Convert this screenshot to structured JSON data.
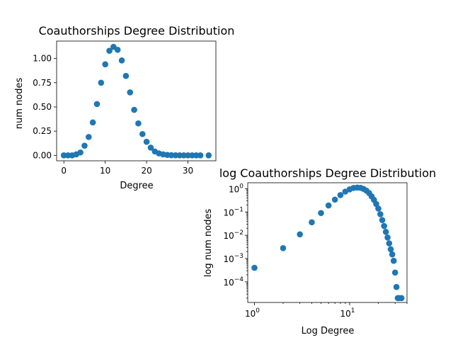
{
  "chart_data": [
    {
      "type": "scatter",
      "title": "Coauthorships Degree Distribution",
      "xlabel": "Degree",
      "ylabel": "num nodes",
      "xlim": [
        -1.75,
        36.75
      ],
      "ylim": [
        -0.056,
        1.18
      ],
      "xticks": [
        0,
        10,
        20,
        30
      ],
      "yticks": [
        0.0,
        0.25,
        0.5,
        0.75,
        1.0
      ],
      "ytick_labels": [
        "0.00",
        "0.25",
        "0.50",
        "0.75",
        "1.00"
      ],
      "color": "#1f77b4",
      "x": [
        0,
        1,
        2,
        3,
        4,
        5,
        6,
        7,
        8,
        9,
        10,
        11,
        12,
        13,
        14,
        15,
        16,
        17,
        18,
        19,
        20,
        21,
        22,
        23,
        24,
        25,
        26,
        27,
        28,
        29,
        30,
        31,
        32,
        33,
        35
      ],
      "y": [
        0.0,
        0.0,
        0.0,
        0.01,
        0.03,
        0.1,
        0.19,
        0.34,
        0.53,
        0.75,
        0.94,
        1.08,
        1.12,
        1.09,
        0.98,
        0.82,
        0.65,
        0.47,
        0.33,
        0.22,
        0.14,
        0.08,
        0.04,
        0.02,
        0.01,
        0.005,
        0.002,
        0.001,
        0.0,
        0.0,
        0.0,
        0.0,
        0.0,
        0.0,
        0.0
      ]
    },
    {
      "type": "scatter",
      "title": "log Coauthorships Degree Distribution",
      "xlabel": "Log Degree",
      "ylabel": "log num nodes",
      "xscale": "log",
      "yscale": "log",
      "xlim": [
        0.85,
        40
      ],
      "ylim": [
        1.3e-05,
        1.8
      ],
      "xticks": [
        1,
        10
      ],
      "xtick_labels": [
        [
          "10",
          "0"
        ],
        [
          "10",
          "1"
        ]
      ],
      "yticks": [
        0.0001,
        0.001,
        0.01,
        0.1,
        1
      ],
      "ytick_labels": [
        [
          "10",
          "−4"
        ],
        [
          "10",
          "−3"
        ],
        [
          "10",
          "−2"
        ],
        [
          "10",
          "−1"
        ],
        [
          "10",
          "0"
        ]
      ],
      "color": "#1f77b4",
      "x": [
        1,
        2,
        3,
        4,
        5,
        6,
        7,
        8,
        9,
        10,
        11,
        12,
        13,
        14,
        15,
        16,
        17,
        18,
        19,
        20,
        21,
        22,
        23,
        24,
        25,
        26,
        27,
        28,
        29,
        30,
        31,
        32,
        33,
        35
      ],
      "y": [
        0.0004,
        0.0028,
        0.011,
        0.036,
        0.09,
        0.19,
        0.34,
        0.53,
        0.75,
        0.94,
        1.08,
        1.12,
        1.09,
        0.98,
        0.82,
        0.65,
        0.47,
        0.33,
        0.22,
        0.14,
        0.08,
        0.045,
        0.025,
        0.014,
        0.008,
        0.0045,
        0.0025,
        0.0015,
        0.0008,
        0.00025,
        6e-05,
        2e-05,
        2e-05,
        2e-05
      ]
    }
  ]
}
